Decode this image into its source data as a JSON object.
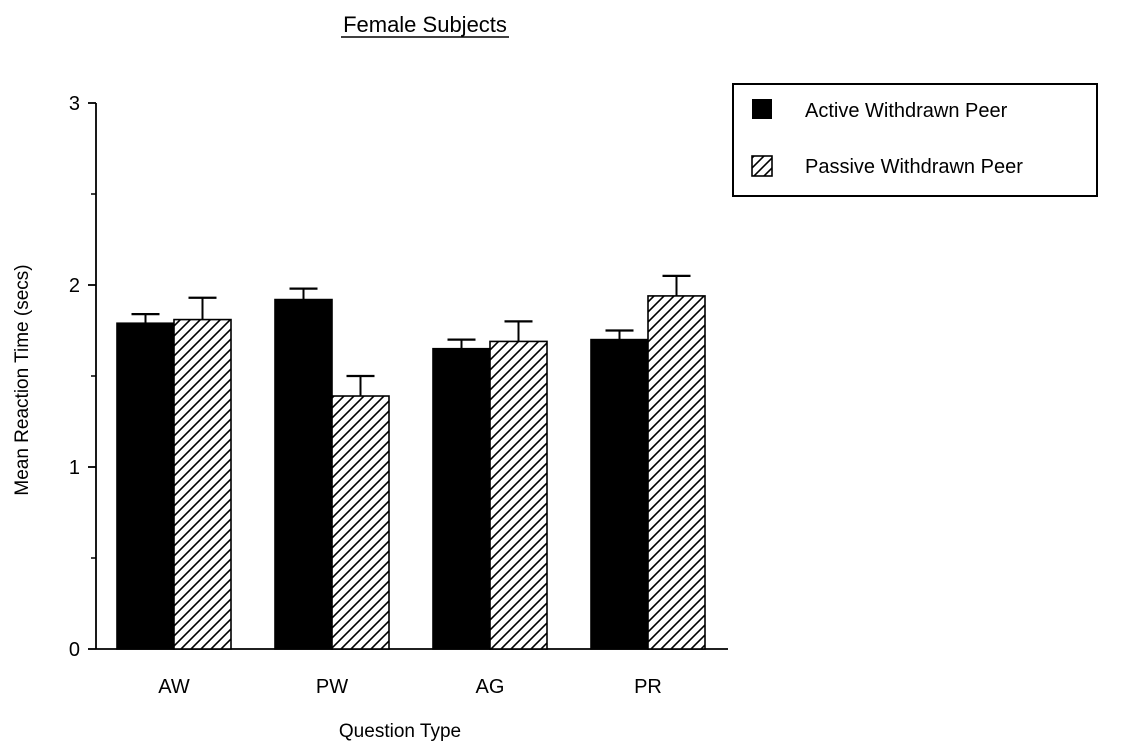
{
  "chart_data": {
    "type": "bar",
    "title": "Female Subjects",
    "xlabel": "Question Type",
    "ylabel": "Mean Reaction Time (secs)",
    "ylim": [
      0,
      3
    ],
    "yticks": [
      "0",
      "1",
      "2",
      "3"
    ],
    "categories": [
      "AW",
      "PW",
      "AG",
      "PR"
    ],
    "series": [
      {
        "name": "Active Withdrawn Peer",
        "style": "solid",
        "color": "#000000",
        "values": [
          1.79,
          1.92,
          1.65,
          1.7
        ],
        "error": [
          0.05,
          0.06,
          0.05,
          0.05
        ]
      },
      {
        "name": "Passive Withdrawn Peer",
        "style": "hatched",
        "color": "#000000",
        "values": [
          1.81,
          1.39,
          1.69,
          1.94
        ],
        "error": [
          0.12,
          0.11,
          0.11,
          0.11
        ]
      }
    ],
    "grid": false,
    "error_bars": true,
    "legend": "top-right"
  }
}
